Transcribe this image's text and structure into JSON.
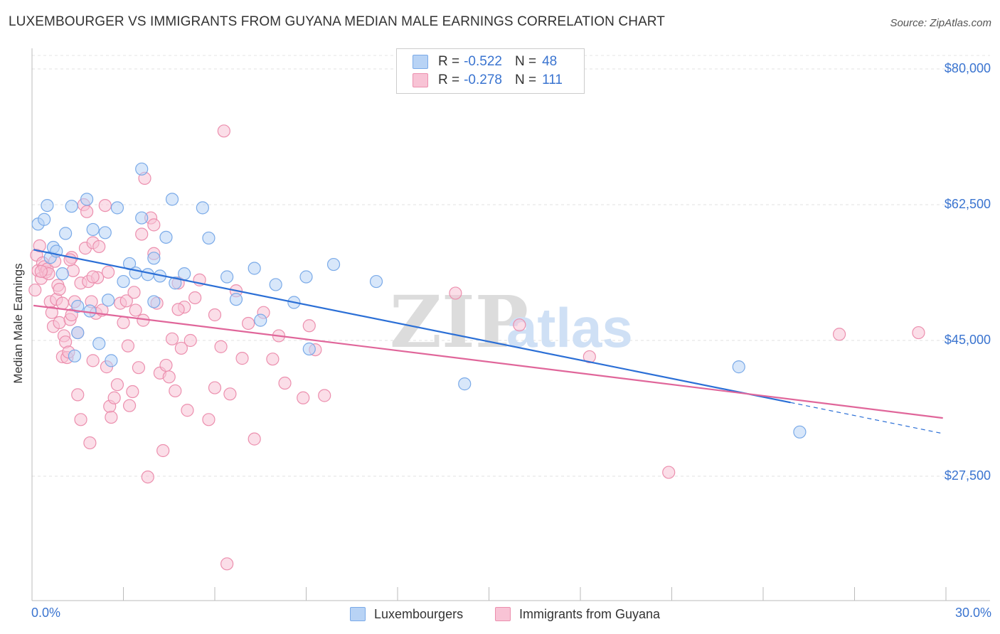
{
  "title": "LUXEMBOURGER VS IMMIGRANTS FROM GUYANA MEDIAN MALE EARNINGS CORRELATION CHART",
  "source": "Source: ZipAtlas.com",
  "watermark": {
    "zip": "ZIP",
    "atlas": "atlas"
  },
  "legend": {
    "series1": {
      "r_label": "R =",
      "r_value": "-0.522",
      "n_label": "N =",
      "n_value": "48"
    },
    "series2": {
      "r_label": "R =",
      "r_value": "-0.278",
      "n_label": "N =",
      "n_value": "111"
    }
  },
  "chart_data": {
    "type": "scatter",
    "xlabel": "",
    "ylabel": "Median Male Earnings",
    "xlim": [
      0,
      30
    ],
    "ylim": [
      10000,
      83000
    ],
    "x_tick_labels": [
      "0.0%",
      "30.0%"
    ],
    "y_ticks": [
      {
        "value": 80000,
        "label": "$80,000"
      },
      {
        "value": 62500,
        "label": "$62,500"
      },
      {
        "value": 45000,
        "label": "$45,000"
      },
      {
        "value": 27500,
        "label": "$27,500"
      }
    ],
    "grid": true,
    "series": [
      {
        "name": "Luxembourgers",
        "color": "#7aaae8",
        "fill": "#b8d3f5",
        "line_color": "#2b6fd6",
        "trend": {
          "x0": 0.05,
          "y0": 56700,
          "x1": 24.9,
          "y1": 37000,
          "dash_to_x": 29.9,
          "dash_to_y": 33000
        },
        "points": [
          [
            0.2,
            60000
          ],
          [
            0.4,
            60600
          ],
          [
            0.5,
            62400
          ],
          [
            0.6,
            55700
          ],
          [
            0.7,
            57000
          ],
          [
            0.8,
            56500
          ],
          [
            1.0,
            53600
          ],
          [
            1.1,
            58800
          ],
          [
            1.3,
            62300
          ],
          [
            1.4,
            43000
          ],
          [
            1.5,
            49400
          ],
          [
            1.8,
            63200
          ],
          [
            1.9,
            48800
          ],
          [
            2.0,
            59300
          ],
          [
            2.2,
            44600
          ],
          [
            2.4,
            58900
          ],
          [
            2.5,
            50200
          ],
          [
            2.6,
            42400
          ],
          [
            2.8,
            62100
          ],
          [
            3.0,
            52600
          ],
          [
            3.2,
            54900
          ],
          [
            3.4,
            53700
          ],
          [
            3.6,
            67100
          ],
          [
            3.8,
            53500
          ],
          [
            4.0,
            50000
          ],
          [
            4.0,
            55600
          ],
          [
            4.2,
            53300
          ],
          [
            4.4,
            58300
          ],
          [
            4.6,
            63200
          ],
          [
            4.7,
            52400
          ],
          [
            5.0,
            53600
          ],
          [
            5.6,
            62100
          ],
          [
            5.8,
            58200
          ],
          [
            6.4,
            53200
          ],
          [
            6.7,
            50300
          ],
          [
            7.3,
            54300
          ],
          [
            7.5,
            47600
          ],
          [
            8.0,
            52200
          ],
          [
            8.6,
            49900
          ],
          [
            9.0,
            53200
          ],
          [
            9.1,
            43900
          ],
          [
            9.9,
            54800
          ],
          [
            11.3,
            52600
          ],
          [
            14.2,
            39400
          ],
          [
            23.2,
            41600
          ],
          [
            25.2,
            33200
          ],
          [
            1.5,
            46000
          ],
          [
            3.6,
            60800
          ]
        ]
      },
      {
        "name": "Immigrants from Guyana",
        "color": "#ec8fae",
        "fill": "#f8c3d5",
        "line_color": "#e0669a",
        "trend": {
          "x0": 0.05,
          "y0": 49500,
          "x1": 29.9,
          "y1": 35000
        },
        "points": [
          [
            0.1,
            51500
          ],
          [
            0.15,
            56000
          ],
          [
            0.2,
            54000
          ],
          [
            0.25,
            57200
          ],
          [
            0.3,
            53000
          ],
          [
            0.35,
            55000
          ],
          [
            0.4,
            54500
          ],
          [
            0.45,
            53800
          ],
          [
            0.5,
            54200
          ],
          [
            0.55,
            53600
          ],
          [
            0.6,
            50000
          ],
          [
            0.65,
            48600
          ],
          [
            0.7,
            46800
          ],
          [
            0.75,
            55200
          ],
          [
            0.8,
            50300
          ],
          [
            0.85,
            52100
          ],
          [
            0.9,
            47300
          ],
          [
            1.0,
            49800
          ],
          [
            1.0,
            42900
          ],
          [
            1.05,
            45600
          ],
          [
            1.1,
            44800
          ],
          [
            1.15,
            42800
          ],
          [
            1.2,
            43500
          ],
          [
            1.25,
            47700
          ],
          [
            1.3,
            48300
          ],
          [
            1.3,
            55700
          ],
          [
            1.35,
            54000
          ],
          [
            1.4,
            50000
          ],
          [
            1.5,
            46000
          ],
          [
            1.5,
            38000
          ],
          [
            1.6,
            34800
          ],
          [
            1.6,
            52400
          ],
          [
            1.7,
            62500
          ],
          [
            1.75,
            56900
          ],
          [
            1.8,
            61600
          ],
          [
            1.85,
            52600
          ],
          [
            1.9,
            31800
          ],
          [
            1.95,
            50000
          ],
          [
            2.0,
            42400
          ],
          [
            2.0,
            57600
          ],
          [
            2.1,
            48500
          ],
          [
            2.15,
            53100
          ],
          [
            2.2,
            57100
          ],
          [
            2.3,
            48900
          ],
          [
            2.4,
            62400
          ],
          [
            2.45,
            41600
          ],
          [
            2.5,
            53800
          ],
          [
            2.55,
            36500
          ],
          [
            2.6,
            35100
          ],
          [
            2.7,
            37600
          ],
          [
            2.8,
            39300
          ],
          [
            2.9,
            49800
          ],
          [
            3.0,
            47300
          ],
          [
            3.1,
            50100
          ],
          [
            3.15,
            44300
          ],
          [
            3.2,
            36600
          ],
          [
            3.3,
            38400
          ],
          [
            3.35,
            51200
          ],
          [
            3.4,
            48900
          ],
          [
            3.5,
            41500
          ],
          [
            3.6,
            58700
          ],
          [
            3.65,
            47600
          ],
          [
            3.7,
            65900
          ],
          [
            3.8,
            27400
          ],
          [
            3.9,
            60800
          ],
          [
            4.0,
            59900
          ],
          [
            4.1,
            49800
          ],
          [
            4.2,
            40800
          ],
          [
            4.3,
            30800
          ],
          [
            4.4,
            41800
          ],
          [
            4.5,
            40300
          ],
          [
            4.6,
            45200
          ],
          [
            4.7,
            38500
          ],
          [
            4.8,
            52400
          ],
          [
            4.9,
            44000
          ],
          [
            5.0,
            49300
          ],
          [
            5.2,
            45000
          ],
          [
            5.35,
            50500
          ],
          [
            5.5,
            52800
          ],
          [
            5.8,
            34800
          ],
          [
            6.0,
            38900
          ],
          [
            6.2,
            44200
          ],
          [
            6.3,
            72000
          ],
          [
            6.4,
            16200
          ],
          [
            6.5,
            38100
          ],
          [
            6.7,
            51400
          ],
          [
            6.9,
            42700
          ],
          [
            7.1,
            47200
          ],
          [
            7.3,
            32300
          ],
          [
            7.6,
            48600
          ],
          [
            7.9,
            42600
          ],
          [
            8.1,
            45600
          ],
          [
            8.3,
            39500
          ],
          [
            8.9,
            37600
          ],
          [
            9.1,
            46900
          ],
          [
            9.3,
            43800
          ],
          [
            9.6,
            37900
          ],
          [
            13.9,
            51100
          ],
          [
            16.0,
            47000
          ],
          [
            18.3,
            42900
          ],
          [
            20.9,
            28000
          ],
          [
            26.5,
            45800
          ],
          [
            29.1,
            46000
          ],
          [
            0.3,
            53900
          ],
          [
            0.9,
            51600
          ],
          [
            1.25,
            55400
          ],
          [
            2.0,
            53200
          ],
          [
            4.0,
            56200
          ],
          [
            4.8,
            49000
          ],
          [
            5.1,
            36000
          ],
          [
            6.0,
            48300
          ]
        ]
      }
    ]
  },
  "bottom_legend": {
    "series1_label": "Luxembourgers",
    "series2_label": "Immigrants from Guyana"
  }
}
